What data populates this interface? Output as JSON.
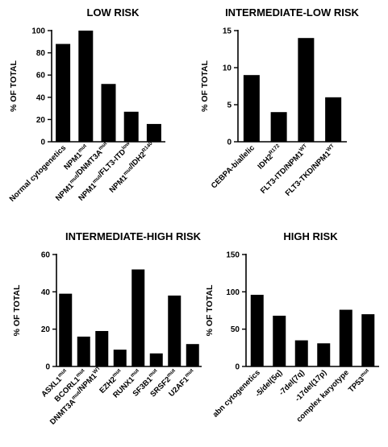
{
  "figure": {
    "bar_color": "#000000",
    "axis_color": "#000000"
  },
  "chart_data": [
    {
      "type": "bar",
      "title": "LOW RISK",
      "ylabel": "% OF TOTAL",
      "ylim": [
        0,
        100
      ],
      "yticks": [
        0,
        20,
        40,
        60,
        80,
        100
      ],
      "categories": [
        {
          "base": "Normal cytogenetics",
          "sup": ""
        },
        {
          "base": "NPM1",
          "sup": "mut"
        },
        {
          "base": "NPM1",
          "sup": "mut",
          "base2": "/DNMT3A",
          "sup2": "mut"
        },
        {
          "base": "NPM1",
          "sup": "mut",
          "base2": "/FLT3-ITD",
          "sup2": "low"
        },
        {
          "base": "NPM1",
          "sup": "mut",
          "base2": "/IDH2",
          "sup2": "R140"
        }
      ],
      "values": [
        88,
        100,
        52,
        27,
        16
      ]
    },
    {
      "type": "bar",
      "title": "INTERMEDIATE-LOW RISK",
      "ylabel": "% OF TOTAL",
      "ylim": [
        0,
        15
      ],
      "yticks": [
        0,
        5,
        10,
        15
      ],
      "categories": [
        {
          "base": "CEBPA-biallelic",
          "sup": ""
        },
        {
          "base": "IDH2",
          "sup": "R172"
        },
        {
          "base": "FLT3-ITD/NPM1",
          "sup": "WT"
        },
        {
          "base": "FLT3-TKD/NPM1",
          "sup": "WT"
        }
      ],
      "values": [
        9,
        4,
        14,
        6
      ]
    },
    {
      "type": "bar",
      "title": "INTERMEDIATE-HIGH RISK",
      "ylabel": "% OF TOTAL",
      "ylim": [
        0,
        60
      ],
      "yticks": [
        0,
        20,
        40,
        60
      ],
      "categories": [
        {
          "base": "ASXL1",
          "sup": "mut"
        },
        {
          "base": "BCORL1",
          "sup": "mut"
        },
        {
          "base": "DNMT3A",
          "sup": "mut",
          "base2": "/NPM1",
          "sup2": "WT"
        },
        {
          "base": "EZH2",
          "sup": "mut"
        },
        {
          "base": "RUNX1",
          "sup": "mut"
        },
        {
          "base": "SF3B1",
          "sup": "mut"
        },
        {
          "base": "SRSF2",
          "sup": "mut"
        },
        {
          "base": "U2AF1",
          "sup": "mut"
        }
      ],
      "values": [
        39,
        16,
        19,
        9,
        52,
        7,
        38,
        12
      ]
    },
    {
      "type": "bar",
      "title": "HIGH RISK",
      "ylabel": "% OF TOTAL",
      "ylim": [
        0,
        150
      ],
      "yticks": [
        0,
        50,
        100,
        150
      ],
      "categories": [
        {
          "base": "abn cytogenetics",
          "sup": ""
        },
        {
          "base": "-5/del(5q)",
          "sup": ""
        },
        {
          "base": "-7del(7q)",
          "sup": ""
        },
        {
          "base": "-17del(17p)",
          "sup": ""
        },
        {
          "base": "complex karyotype",
          "sup": ""
        },
        {
          "base": "TP53",
          "sup": "mut"
        }
      ],
      "values": [
        96,
        68,
        35,
        31,
        76,
        70
      ]
    }
  ]
}
